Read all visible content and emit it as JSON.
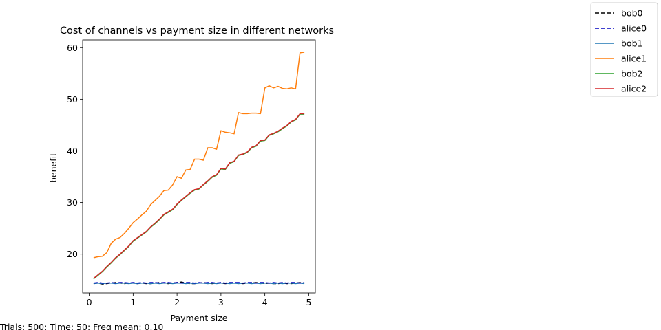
{
  "chart_data": {
    "type": "line",
    "title": "Cost of channels vs payment size in different networks",
    "xlabel": "Payment size",
    "ylabel": "benefit",
    "xlim": [
      -0.15,
      5.15
    ],
    "ylim": [
      12.5,
      61.5
    ],
    "xticks": [
      0,
      1,
      2,
      3,
      4,
      5
    ],
    "yticks": [
      20,
      30,
      40,
      50,
      60
    ],
    "grid": false,
    "legend_position": "top-right, outside plot",
    "x": [
      0.1,
      0.2,
      0.3,
      0.4,
      0.5,
      0.6,
      0.7,
      0.8,
      0.9,
      1.0,
      1.1,
      1.2,
      1.3,
      1.4,
      1.5,
      1.6,
      1.7,
      1.8,
      1.9,
      2.0,
      2.1,
      2.2,
      2.3,
      2.4,
      2.5,
      2.6,
      2.7,
      2.8,
      2.9,
      3.0,
      3.1,
      3.2,
      3.3,
      3.4,
      3.5,
      3.6,
      3.7,
      3.8,
      3.9,
      4.0,
      4.1,
      4.2,
      4.3,
      4.4,
      4.5,
      4.6,
      4.7,
      4.8,
      4.9
    ],
    "series": [
      {
        "name": "bob0",
        "color": "#000000",
        "dash": "6,3",
        "values": [
          14.3,
          14.4,
          14.2,
          14.3,
          14.4,
          14.5,
          14.4,
          14.3,
          14.4,
          14.4,
          14.3,
          14.4,
          14.3,
          14.3,
          14.4,
          14.5,
          14.4,
          14.3,
          14.4,
          14.5,
          14.6,
          14.4,
          14.3,
          14.3,
          14.4,
          14.5,
          14.4,
          14.3,
          14.4,
          14.4,
          14.3,
          14.4,
          14.5,
          14.4,
          14.3,
          14.4,
          14.4,
          14.5,
          14.4,
          14.3,
          14.4,
          14.3,
          14.3,
          14.4,
          14.3,
          14.3,
          14.4,
          14.5,
          14.4
        ]
      },
      {
        "name": "alice0",
        "color": "#0000bf",
        "dash": "6,3",
        "values": [
          14.4,
          14.5,
          14.4,
          14.4,
          14.5,
          14.4,
          14.5,
          14.5,
          14.4,
          14.5,
          14.4,
          14.5,
          14.4,
          14.5,
          14.5,
          14.4,
          14.5,
          14.5,
          14.4,
          14.5,
          14.4,
          14.5,
          14.5,
          14.4,
          14.5,
          14.4,
          14.5,
          14.5,
          14.4,
          14.5,
          14.4,
          14.5,
          14.5,
          14.5,
          14.4,
          14.5,
          14.5,
          14.4,
          14.5,
          14.5,
          14.4,
          14.5,
          14.4,
          14.5,
          14.4,
          14.5,
          14.5,
          14.4,
          14.5
        ]
      },
      {
        "name": "bob1",
        "color": "#1f77b4",
        "dash": "",
        "values": [
          14.3,
          14.4,
          14.3,
          14.4,
          14.4,
          14.3,
          14.4,
          14.4,
          14.3,
          14.4,
          14.3,
          14.4,
          14.4,
          14.3,
          14.4,
          14.3,
          14.4,
          14.4,
          14.3,
          14.4,
          14.4,
          14.3,
          14.4,
          14.3,
          14.4,
          14.4,
          14.3,
          14.4,
          14.3,
          14.4,
          14.4,
          14.3,
          14.4,
          14.3,
          14.4,
          14.4,
          14.3,
          14.4,
          14.3,
          14.4,
          14.4,
          14.3,
          14.4,
          14.3,
          14.4,
          14.4,
          14.3,
          14.4,
          14.3
        ]
      },
      {
        "name": "alice1",
        "color": "#ff7f0e",
        "dash": "",
        "values": [
          19.3,
          19.5,
          19.6,
          20.3,
          22.1,
          22.9,
          23.2,
          24.0,
          25.0,
          26.1,
          26.8,
          27.6,
          28.3,
          29.6,
          30.4,
          31.2,
          32.3,
          32.4,
          33.4,
          35.0,
          34.7,
          36.3,
          36.4,
          38.4,
          38.4,
          38.2,
          40.6,
          40.6,
          40.3,
          43.9,
          43.6,
          43.5,
          43.3,
          47.4,
          47.2,
          47.2,
          47.3,
          47.3,
          47.2,
          52.2,
          52.6,
          52.2,
          52.5,
          52.1,
          52.0,
          52.2,
          52.0,
          59.0,
          59.1
        ]
      },
      {
        "name": "bob2",
        "color": "#2ca02c",
        "dash": "",
        "values": [
          15.2,
          15.9,
          16.6,
          17.5,
          18.3,
          19.2,
          19.9,
          20.7,
          21.5,
          22.5,
          23.1,
          23.7,
          24.3,
          25.2,
          25.9,
          26.7,
          27.6,
          28.1,
          28.6,
          29.6,
          30.4,
          31.1,
          31.8,
          32.4,
          32.6,
          33.4,
          34.1,
          34.9,
          35.3,
          36.5,
          36.4,
          37.6,
          37.9,
          39.1,
          39.3,
          39.7,
          40.6,
          40.9,
          41.9,
          42.0,
          43.0,
          43.3,
          43.7,
          44.3,
          44.8,
          45.6,
          46.0,
          47.1,
          47.1
        ]
      },
      {
        "name": "alice2",
        "color": "#d62728",
        "dash": "",
        "values": [
          15.3,
          16.0,
          16.7,
          17.6,
          18.4,
          19.3,
          20.0,
          20.8,
          21.6,
          22.6,
          23.2,
          23.8,
          24.4,
          25.3,
          26.0,
          26.8,
          27.7,
          28.2,
          28.7,
          29.7,
          30.5,
          31.2,
          31.9,
          32.5,
          32.7,
          33.5,
          34.2,
          35.0,
          35.4,
          36.6,
          36.5,
          37.7,
          38.0,
          39.2,
          39.4,
          39.8,
          40.7,
          41.0,
          42.0,
          42.1,
          43.1,
          43.4,
          43.8,
          44.4,
          44.9,
          45.7,
          46.1,
          47.2,
          47.2
        ]
      }
    ]
  },
  "footer_text": "Trials: 500: Time: 50: Freq mean: 0.10"
}
